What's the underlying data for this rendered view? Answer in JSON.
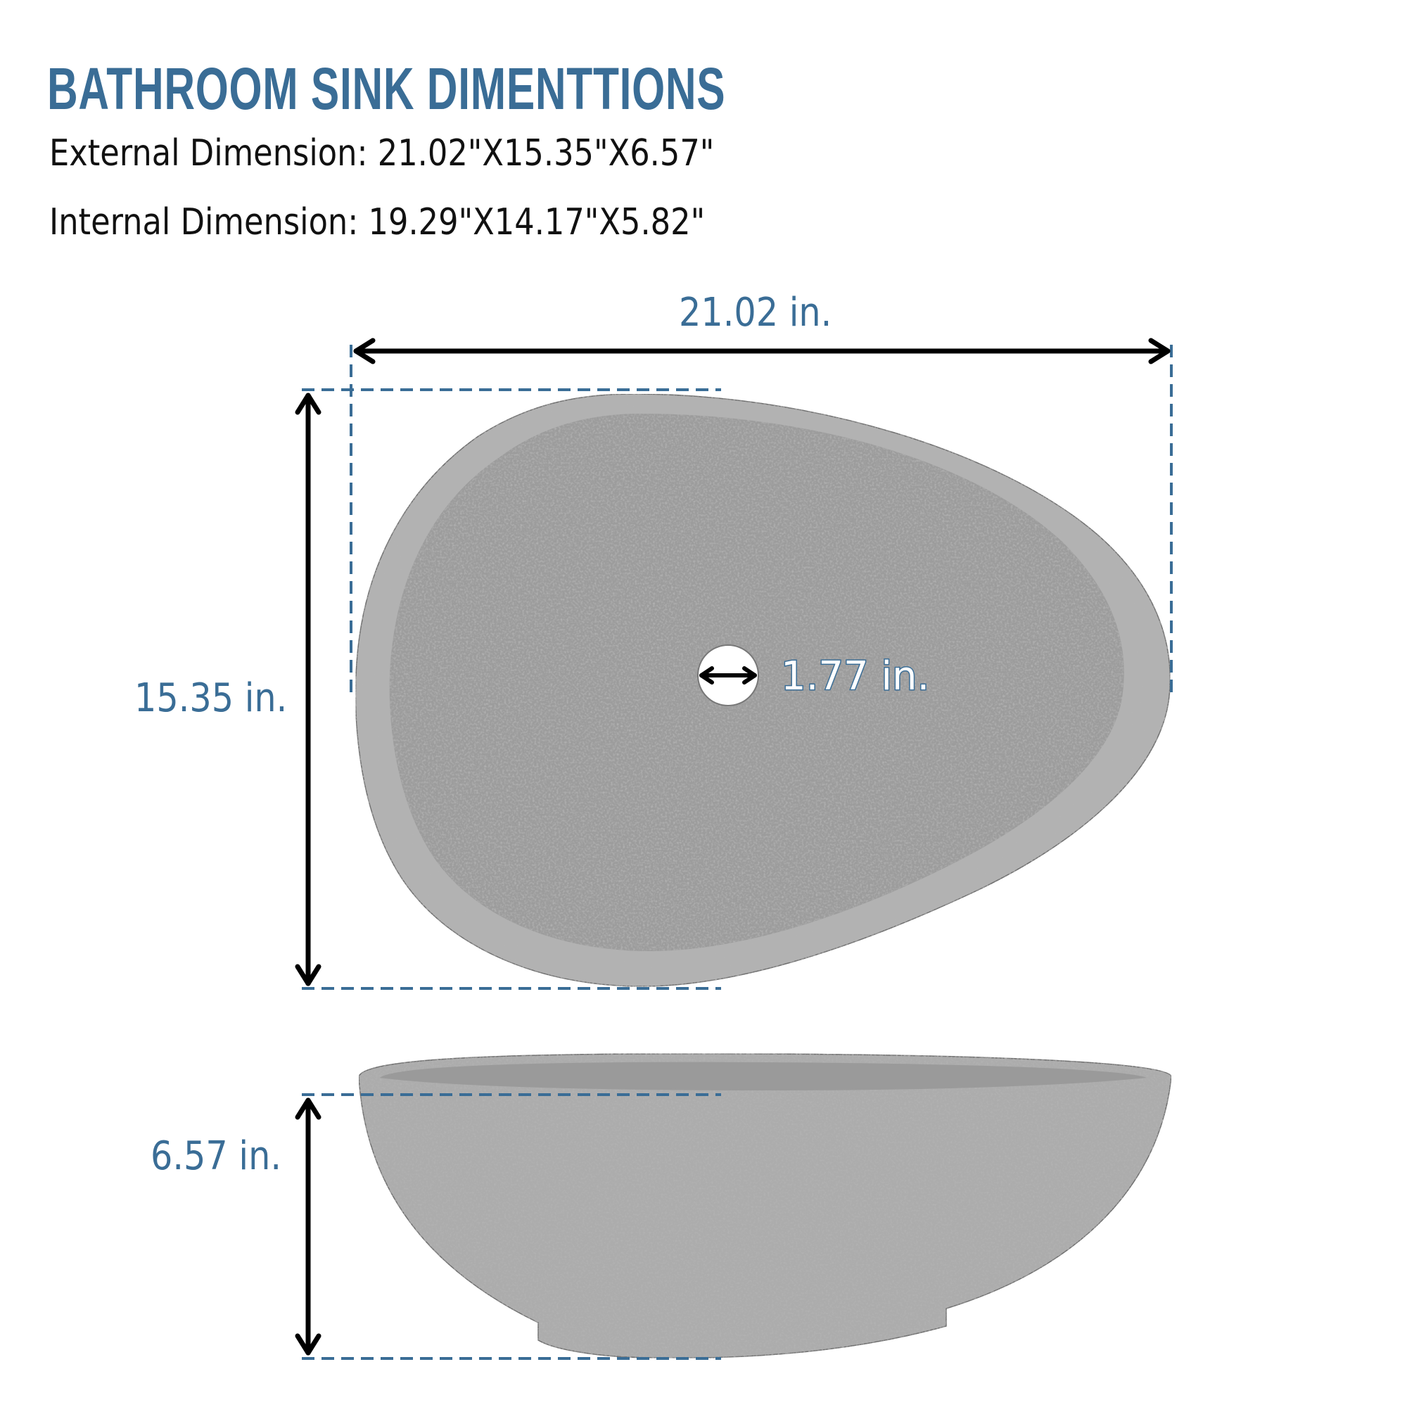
{
  "header": {
    "title": "BATHROOM SINK DIMENTTIONS",
    "external_dimension": "External Dimension: 21.02\"X15.35\"X6.57\"",
    "internal_dimension": "Internal Dimension: 19.29\"X14.17\"X5.82\""
  },
  "dimensions": {
    "width": "21.02 in.",
    "length": "15.35 in.",
    "height": "6.57 in.",
    "drain": "1.77 in."
  },
  "colors": {
    "accent": "#3a6d96",
    "stone": "#a3a3a3",
    "text": "#111111"
  }
}
